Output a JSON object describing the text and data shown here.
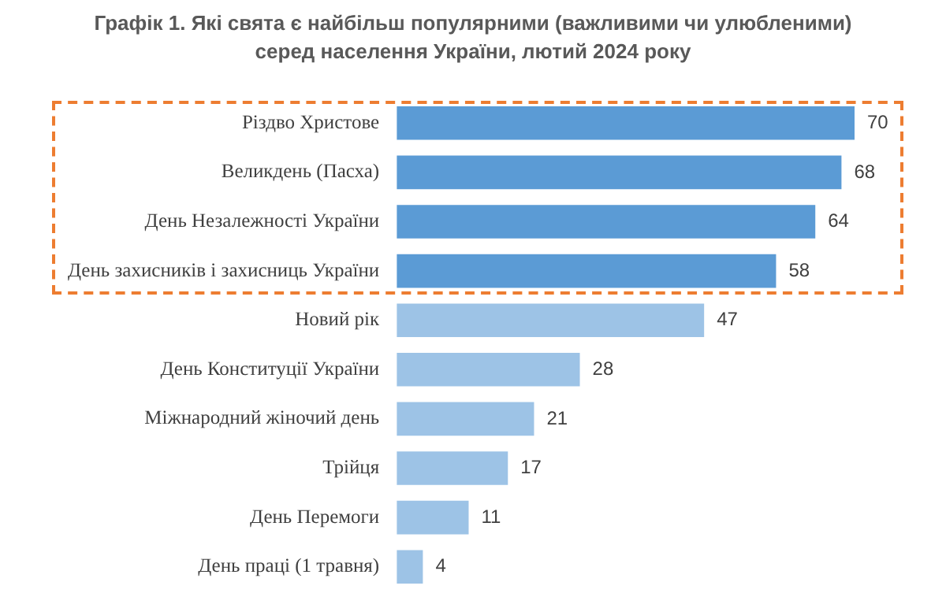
{
  "chart_data": {
    "type": "bar",
    "orientation": "horizontal",
    "title": "Графік 1.  Які свята є найбільш популярними (важливими чи улюбленими) серед населення України, лютий 2024 року",
    "categories": [
      "Різдво Христове",
      "Великдень (Пасха)",
      "День Незалежності України",
      "День захисників і захисниць України",
      "Новий рік",
      "День Конституції України",
      "Міжнародний жіночий день",
      "Трійця",
      "День Перемоги",
      "День праці (1 травня)"
    ],
    "values": [
      70,
      68,
      64,
      58,
      47,
      28,
      21,
      17,
      11,
      4
    ],
    "colors": [
      "#5b9bd5",
      "#5b9bd5",
      "#5b9bd5",
      "#5b9bd5",
      "#9dc3e6",
      "#9dc3e6",
      "#9dc3e6",
      "#9dc3e6",
      "#9dc3e6",
      "#9dc3e6"
    ],
    "data_labels": true
  }
}
